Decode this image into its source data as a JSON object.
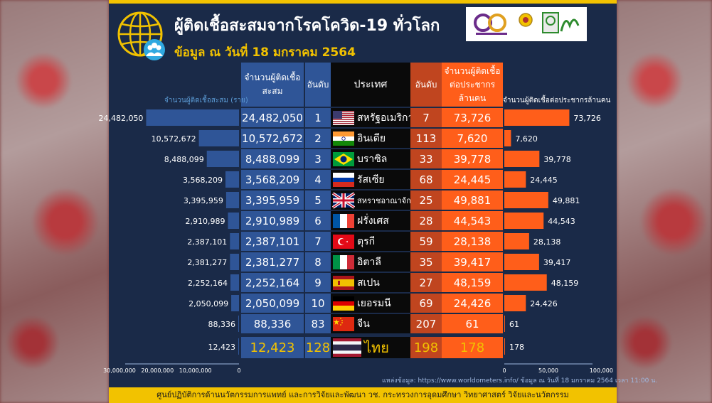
{
  "title": "ผู้ติดเชื้อสะสมจากโรคโควิด-19 ทั่วโลก",
  "subtitle": "ข้อมูล ณ วันที่ 18 มกราคม 2564",
  "headers": {
    "cases": "จำนวนผู้ติดเชื้อสะสม",
    "rank": "อันดับ",
    "country": "ประเทศ",
    "rank2": "อันดับ",
    "permil": "จำนวนผู้ติดเชื้อต่อประชากรล้านคน"
  },
  "left_axis_label": "จำนวนผู้ติดเชื้อสะสม (ราย)",
  "right_axis_label": "จำนวนผู้ติดเชื้อต่อประชากรล้านคน",
  "source": "แหล่งข้อมูล: https://www.worldometers.info/ ข้อมูล ณ วันที่ 18 มกราคม 2564 เวลา 11:00 น.",
  "footer": "ศูนย์ปฏิบัติการด้านนวัตกรรมการแพทย์ และการวิจัยและพัฒนา วช. กระทรวงการอุดมศึกษา วิทยาศาสตร์ วิจัยและนวัตกรรม",
  "colors": {
    "left_bar": "#2f5597",
    "right_bar": "#ff5e1a",
    "accent": "#f2c200",
    "background": "#1a2a48"
  },
  "chart_data": {
    "type": "bar",
    "categories": [
      "สหรัฐอเมริกา",
      "อินเดีย",
      "บราซิล",
      "รัสเซีย",
      "สหราชอาณาจักร",
      "ฝรั่งเศส",
      "ตุรกี",
      "อิตาลี",
      "สเปน",
      "เยอรมนี",
      "จีน",
      "ไทย"
    ],
    "flags": [
      "us",
      "in",
      "br",
      "ru",
      "gb",
      "fr",
      "tr",
      "it",
      "es",
      "de",
      "cn",
      "th"
    ],
    "series": [
      {
        "name": "จำนวนผู้ติดเชื้อสะสม",
        "values": [
          24482050,
          10572672,
          8488099,
          3568209,
          3395959,
          2910989,
          2387101,
          2381277,
          2252164,
          2050099,
          88336,
          12423
        ]
      },
      {
        "name": "อันดับ",
        "values": [
          1,
          2,
          3,
          4,
          5,
          6,
          7,
          8,
          9,
          10,
          83,
          128
        ]
      },
      {
        "name": "อันดับ",
        "values": [
          7,
          113,
          33,
          68,
          25,
          28,
          59,
          35,
          27,
          69,
          207,
          198
        ]
      },
      {
        "name": "จำนวนผู้ติดเชื้อต่อประชากรล้านคน",
        "values": [
          73726,
          7620,
          39778,
          24445,
          49881,
          44543,
          28138,
          39417,
          48159,
          24426,
          61,
          178
        ]
      }
    ],
    "cases_labels": [
      "24,482,050",
      "10,572,672",
      "8,488,099",
      "3,568,209",
      "3,395,959",
      "2,910,989",
      "2,387,101",
      "2,381,277",
      "2,252,164",
      "2,050,099",
      "88,336",
      "12,423"
    ],
    "permil_labels": [
      "73,726",
      "7,620",
      "39,778",
      "24,445",
      "49,881",
      "44,543",
      "28,138",
      "39,417",
      "48,159",
      "24,426",
      "61",
      "178"
    ],
    "left_axis": {
      "ticks": [
        "30,000,000",
        "20,000,000",
        "10,000,000",
        "0"
      ],
      "range": [
        0,
        30000000
      ]
    },
    "right_axis": {
      "ticks": [
        "0",
        "50,000",
        "100,000"
      ],
      "range": [
        0,
        100000
      ]
    }
  }
}
